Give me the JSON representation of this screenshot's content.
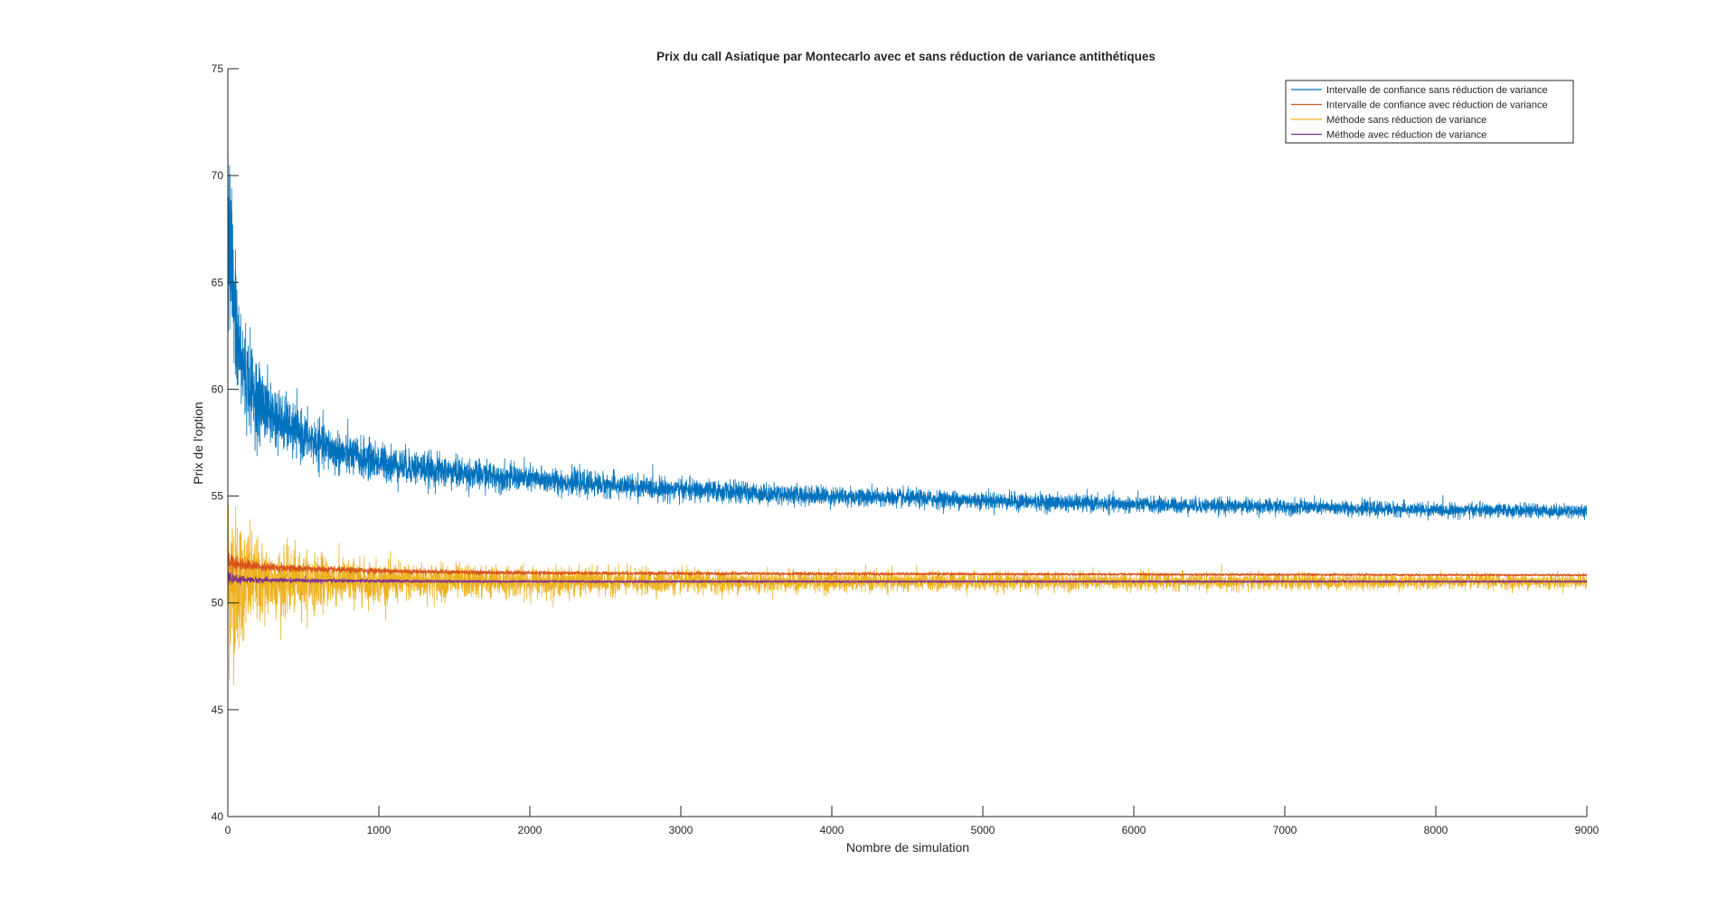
{
  "figure": {
    "background": "#ffffff"
  },
  "chart_data": {
    "type": "line",
    "title": "Prix du call Asiatique par Montecarlo avec et sans réduction de variance antithétiques",
    "xlabel": "Nombre de simulation",
    "ylabel": "Prix de l'option",
    "xlim": [
      0,
      9000
    ],
    "ylim": [
      40,
      75
    ],
    "xticks": [
      0,
      1000,
      2000,
      3000,
      4000,
      5000,
      6000,
      7000,
      8000,
      9000
    ],
    "yticks": [
      40,
      45,
      50,
      55,
      60,
      65,
      70,
      75
    ],
    "grid": false,
    "legend_position": "top-right",
    "x_start": 1,
    "x_end": 9000,
    "series": [
      {
        "name": "Intervalle de confiance sans réduction de variance",
        "color": "#0072BD",
        "envelope": [
          [
            1,
            71
          ],
          [
            25,
            66
          ],
          [
            50,
            63
          ],
          [
            100,
            61
          ],
          [
            200,
            59.5
          ],
          [
            300,
            58.8
          ],
          [
            500,
            57.8
          ],
          [
            750,
            57.0
          ],
          [
            1000,
            56.6
          ],
          [
            1500,
            56.1
          ],
          [
            2000,
            55.8
          ],
          [
            3000,
            55.3
          ],
          [
            4000,
            55.0
          ],
          [
            5000,
            54.8
          ],
          [
            6000,
            54.6
          ],
          [
            7000,
            54.5
          ],
          [
            8000,
            54.35
          ],
          [
            9000,
            54.3
          ]
        ],
        "noise": [
          [
            1,
            5.0
          ],
          [
            50,
            3.0
          ],
          [
            200,
            1.6
          ],
          [
            500,
            1.0
          ],
          [
            1000,
            0.8
          ],
          [
            2000,
            0.55
          ],
          [
            4000,
            0.4
          ],
          [
            9000,
            0.28
          ]
        ]
      },
      {
        "name": "Intervalle de confiance avec réduction de variance",
        "color": "#D95319",
        "envelope": [
          [
            1,
            52.2
          ],
          [
            100,
            51.8
          ],
          [
            500,
            51.6
          ],
          [
            1000,
            51.5
          ],
          [
            2000,
            51.4
          ],
          [
            5000,
            51.35
          ],
          [
            9000,
            51.3
          ]
        ],
        "noise": [
          [
            1,
            0.6
          ],
          [
            200,
            0.2
          ],
          [
            2000,
            0.08
          ],
          [
            9000,
            0.04
          ]
        ]
      },
      {
        "name": "Méthode sans réduction de variance",
        "color": "#EDB120",
        "envelope": [
          [
            1,
            51.0
          ],
          [
            1000,
            51.0
          ],
          [
            9000,
            51.0
          ]
        ],
        "noise": [
          [
            1,
            5.5
          ],
          [
            50,
            3.2
          ],
          [
            200,
            1.8
          ],
          [
            500,
            1.2
          ],
          [
            1000,
            0.85
          ],
          [
            2000,
            0.6
          ],
          [
            4000,
            0.42
          ],
          [
            9000,
            0.3
          ]
        ]
      },
      {
        "name": "Méthode avec réduction de variance",
        "color": "#7E2F8E",
        "envelope": [
          [
            1,
            51.2
          ],
          [
            500,
            51.05
          ],
          [
            2000,
            51.0
          ],
          [
            9000,
            51.0
          ]
        ],
        "noise": [
          [
            1,
            0.35
          ],
          [
            200,
            0.12
          ],
          [
            2000,
            0.05
          ],
          [
            9000,
            0.03
          ]
        ]
      }
    ]
  }
}
